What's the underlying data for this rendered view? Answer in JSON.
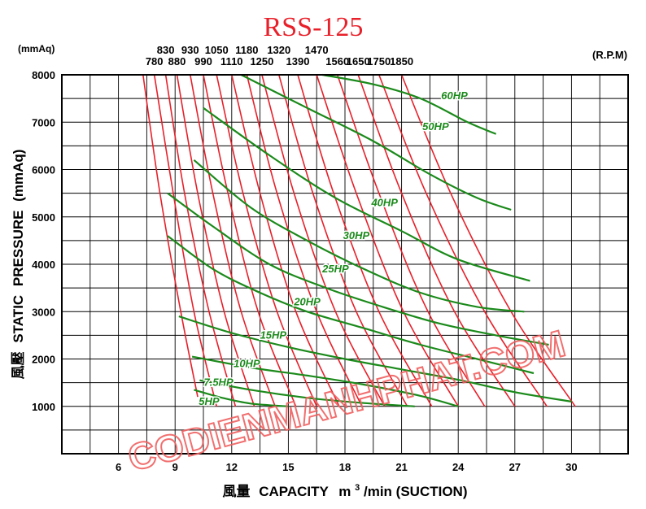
{
  "chart_data": {
    "type": "line",
    "title": "RSS-125",
    "ylabel": "風壓 STATIC PRESSURE (mmAq)",
    "ylabel_parts": [
      "風壓",
      "STATIC",
      "PRESSURE",
      "(mmAq)"
    ],
    "y_unit": "(mmAq)",
    "xlabel": "風量 CAPACITY m³/min (SUCTION)",
    "xlabel_parts": [
      "風量",
      "CAPACITY",
      "m",
      "3",
      "/min (SUCTION)"
    ],
    "rpm_unit": "(R.P.M)",
    "xlim": [
      3,
      33
    ],
    "ylim": [
      0,
      8000
    ],
    "x_ticks": [
      6,
      9,
      12,
      15,
      18,
      21,
      24,
      27,
      30
    ],
    "y_ticks": [
      1000,
      2000,
      3000,
      4000,
      5000,
      6000,
      7000,
      8000
    ],
    "grid": true,
    "rpm_curves": [
      {
        "name": "780",
        "points": [
          [
            7.3,
            8000
          ],
          [
            8.2,
            5500
          ],
          [
            9.3,
            3000
          ],
          [
            10.2,
            1200
          ]
        ]
      },
      {
        "name": "830",
        "points": [
          [
            7.9,
            8000
          ],
          [
            8.9,
            5500
          ],
          [
            10.0,
            3000
          ],
          [
            11.2,
            1000
          ]
        ]
      },
      {
        "name": "880",
        "points": [
          [
            8.5,
            8000
          ],
          [
            9.5,
            5500
          ],
          [
            10.8,
            3000
          ],
          [
            12.2,
            1000
          ]
        ]
      },
      {
        "name": "930",
        "points": [
          [
            9.1,
            8000
          ],
          [
            10.2,
            5500
          ],
          [
            11.6,
            3000
          ],
          [
            13.2,
            1000
          ]
        ]
      },
      {
        "name": "990",
        "points": [
          [
            9.8,
            8000
          ],
          [
            11.0,
            5500
          ],
          [
            12.5,
            3000
          ],
          [
            14.3,
            1000
          ]
        ]
      },
      {
        "name": "1050",
        "points": [
          [
            10.5,
            8000
          ],
          [
            11.8,
            5500
          ],
          [
            13.4,
            3000
          ],
          [
            15.4,
            1000
          ]
        ]
      },
      {
        "name": "1110",
        "points": [
          [
            11.2,
            8000
          ],
          [
            12.6,
            5500
          ],
          [
            14.4,
            3000
          ],
          [
            16.5,
            1000
          ]
        ]
      },
      {
        "name": "1180",
        "points": [
          [
            12.0,
            8000
          ],
          [
            13.5,
            5500
          ],
          [
            15.4,
            3000
          ],
          [
            17.7,
            1000
          ]
        ]
      },
      {
        "name": "1250",
        "points": [
          [
            12.8,
            8000
          ],
          [
            14.4,
            5500
          ],
          [
            16.5,
            3000
          ],
          [
            18.9,
            1000
          ]
        ]
      },
      {
        "name": "1320",
        "points": [
          [
            13.6,
            8000
          ],
          [
            15.3,
            5500
          ],
          [
            17.5,
            3000
          ],
          [
            20.1,
            1000
          ]
        ]
      },
      {
        "name": "1390",
        "points": [
          [
            14.5,
            8000
          ],
          [
            16.3,
            5500
          ],
          [
            18.6,
            3000
          ],
          [
            21.3,
            1000
          ]
        ]
      },
      {
        "name": "1470",
        "points": [
          [
            15.5,
            8000
          ],
          [
            17.4,
            5500
          ],
          [
            19.8,
            3000
          ],
          [
            22.6,
            1000
          ]
        ]
      },
      {
        "name": "1560",
        "points": [
          [
            16.5,
            8000
          ],
          [
            18.6,
            5500
          ],
          [
            21.1,
            3000
          ],
          [
            24.0,
            1000
          ]
        ]
      },
      {
        "name": "1650",
        "points": [
          [
            17.6,
            8000
          ],
          [
            19.8,
            5500
          ],
          [
            22.4,
            3000
          ],
          [
            25.4,
            1000
          ]
        ]
      },
      {
        "name": "1750",
        "points": [
          [
            18.7,
            8000
          ],
          [
            21.0,
            5500
          ],
          [
            23.8,
            3000
          ],
          [
            27.0,
            1000
          ]
        ]
      },
      {
        "name": "1850",
        "points": [
          [
            19.8,
            8000
          ],
          [
            22.3,
            5500
          ],
          [
            25.4,
            3000
          ],
          [
            28.7,
            1000
          ]
        ]
      },
      {
        "points": [
          [
            21.0,
            8000
          ],
          [
            23.6,
            5500
          ],
          [
            26.8,
            3000
          ],
          [
            30.2,
            1000
          ]
        ]
      }
    ],
    "rpm_labels_upper": [
      {
        "text": "830",
        "x": 8.5
      },
      {
        "text": "930",
        "x": 9.8
      },
      {
        "text": "1050",
        "x": 11.2
      },
      {
        "text": "1180",
        "x": 12.8
      },
      {
        "text": "1320",
        "x": 14.5
      },
      {
        "text": "1470",
        "x": 16.5
      }
    ],
    "rpm_labels_lower": [
      {
        "text": "780",
        "x": 7.9
      },
      {
        "text": "880",
        "x": 9.1
      },
      {
        "text": "990",
        "x": 10.5
      },
      {
        "text": "1110",
        "x": 12.0
      },
      {
        "text": "1250",
        "x": 13.6
      },
      {
        "text": "1390",
        "x": 15.5
      },
      {
        "text": "1560",
        "x": 17.6
      },
      {
        "text": "1650",
        "x": 18.7
      },
      {
        "text": "1750",
        "x": 19.8
      },
      {
        "text": "1850",
        "x": 21.0
      }
    ],
    "hp_curves": [
      {
        "name": "5HP",
        "points": [
          [
            10.0,
            1350
          ],
          [
            11.5,
            1180
          ],
          [
            13.0,
            1060
          ],
          [
            15.0,
            1000
          ]
        ],
        "label_at": [
          10.8,
          1100
        ]
      },
      {
        "name": "7.5HP",
        "points": [
          [
            10.3,
            1550
          ],
          [
            13.0,
            1350
          ],
          [
            16.0,
            1180
          ],
          [
            19.0,
            1070
          ],
          [
            21.7,
            1000
          ]
        ],
        "label_at": [
          11.3,
          1500
        ]
      },
      {
        "name": "10HP",
        "points": [
          [
            9.9,
            2050
          ],
          [
            13.0,
            1820
          ],
          [
            16.0,
            1650
          ],
          [
            19.0,
            1460
          ],
          [
            22.0,
            1220
          ],
          [
            24.0,
            1000
          ]
        ],
        "label_at": [
          12.8,
          1900
        ]
      },
      {
        "name": "15HP",
        "points": [
          [
            9.2,
            2900
          ],
          [
            12.0,
            2550
          ],
          [
            15.0,
            2250
          ],
          [
            18.0,
            2000
          ],
          [
            21.0,
            1780
          ],
          [
            24.0,
            1560
          ],
          [
            27.0,
            1300
          ],
          [
            30.0,
            1100
          ]
        ],
        "label_at": [
          14.2,
          2500
        ]
      },
      {
        "name": "20HP",
        "points": [
          [
            8.6,
            4600
          ],
          [
            11.0,
            3900
          ],
          [
            13.5,
            3400
          ],
          [
            16.0,
            3000
          ],
          [
            19.0,
            2650
          ],
          [
            22.0,
            2300
          ],
          [
            25.0,
            2000
          ],
          [
            28.0,
            1700
          ]
        ],
        "label_at": [
          16.0,
          3200
        ]
      },
      {
        "name": "25HP",
        "points": [
          [
            8.6,
            5500
          ],
          [
            11.0,
            4800
          ],
          [
            14.0,
            4000
          ],
          [
            17.0,
            3500
          ],
          [
            20.0,
            3100
          ],
          [
            23.0,
            2750
          ],
          [
            26.0,
            2500
          ],
          [
            28.8,
            2300
          ]
        ],
        "label_at": [
          17.5,
          3900
        ]
      },
      {
        "name": "30HP",
        "points": [
          [
            10.0,
            6200
          ],
          [
            13.0,
            5200
          ],
          [
            16.0,
            4500
          ],
          [
            19.0,
            3900
          ],
          [
            22.0,
            3400
          ],
          [
            25.0,
            3100
          ],
          [
            27.5,
            3000
          ]
        ],
        "label_at": [
          18.6,
          4600
        ]
      },
      {
        "name": "40HP",
        "points": [
          [
            10.5,
            7300
          ],
          [
            14.0,
            6300
          ],
          [
            17.5,
            5400
          ],
          [
            21.0,
            4700
          ],
          [
            24.0,
            4100
          ],
          [
            27.8,
            3650
          ]
        ],
        "label_at": [
          20.1,
          5300
        ]
      },
      {
        "name": "50HP",
        "points": [
          [
            12.5,
            8000
          ],
          [
            16.0,
            7300
          ],
          [
            19.5,
            6600
          ],
          [
            22.5,
            5900
          ],
          [
            25.0,
            5400
          ],
          [
            26.8,
            5150
          ]
        ],
        "label_at": [
          22.8,
          6900
        ]
      },
      {
        "name": "60HP",
        "points": [
          [
            16.8,
            8000
          ],
          [
            19.5,
            7800
          ],
          [
            22.0,
            7500
          ],
          [
            24.5,
            7000
          ],
          [
            26.0,
            6750
          ]
        ],
        "label_at": [
          23.8,
          7550
        ]
      }
    ]
  },
  "watermark": "CODIENMANHPHAT.COM",
  "colors": {
    "rpm_curve": "#e8202a",
    "hp_curve": "#1b8a1b",
    "grid": "#000000",
    "watermark": "#f06060"
  }
}
